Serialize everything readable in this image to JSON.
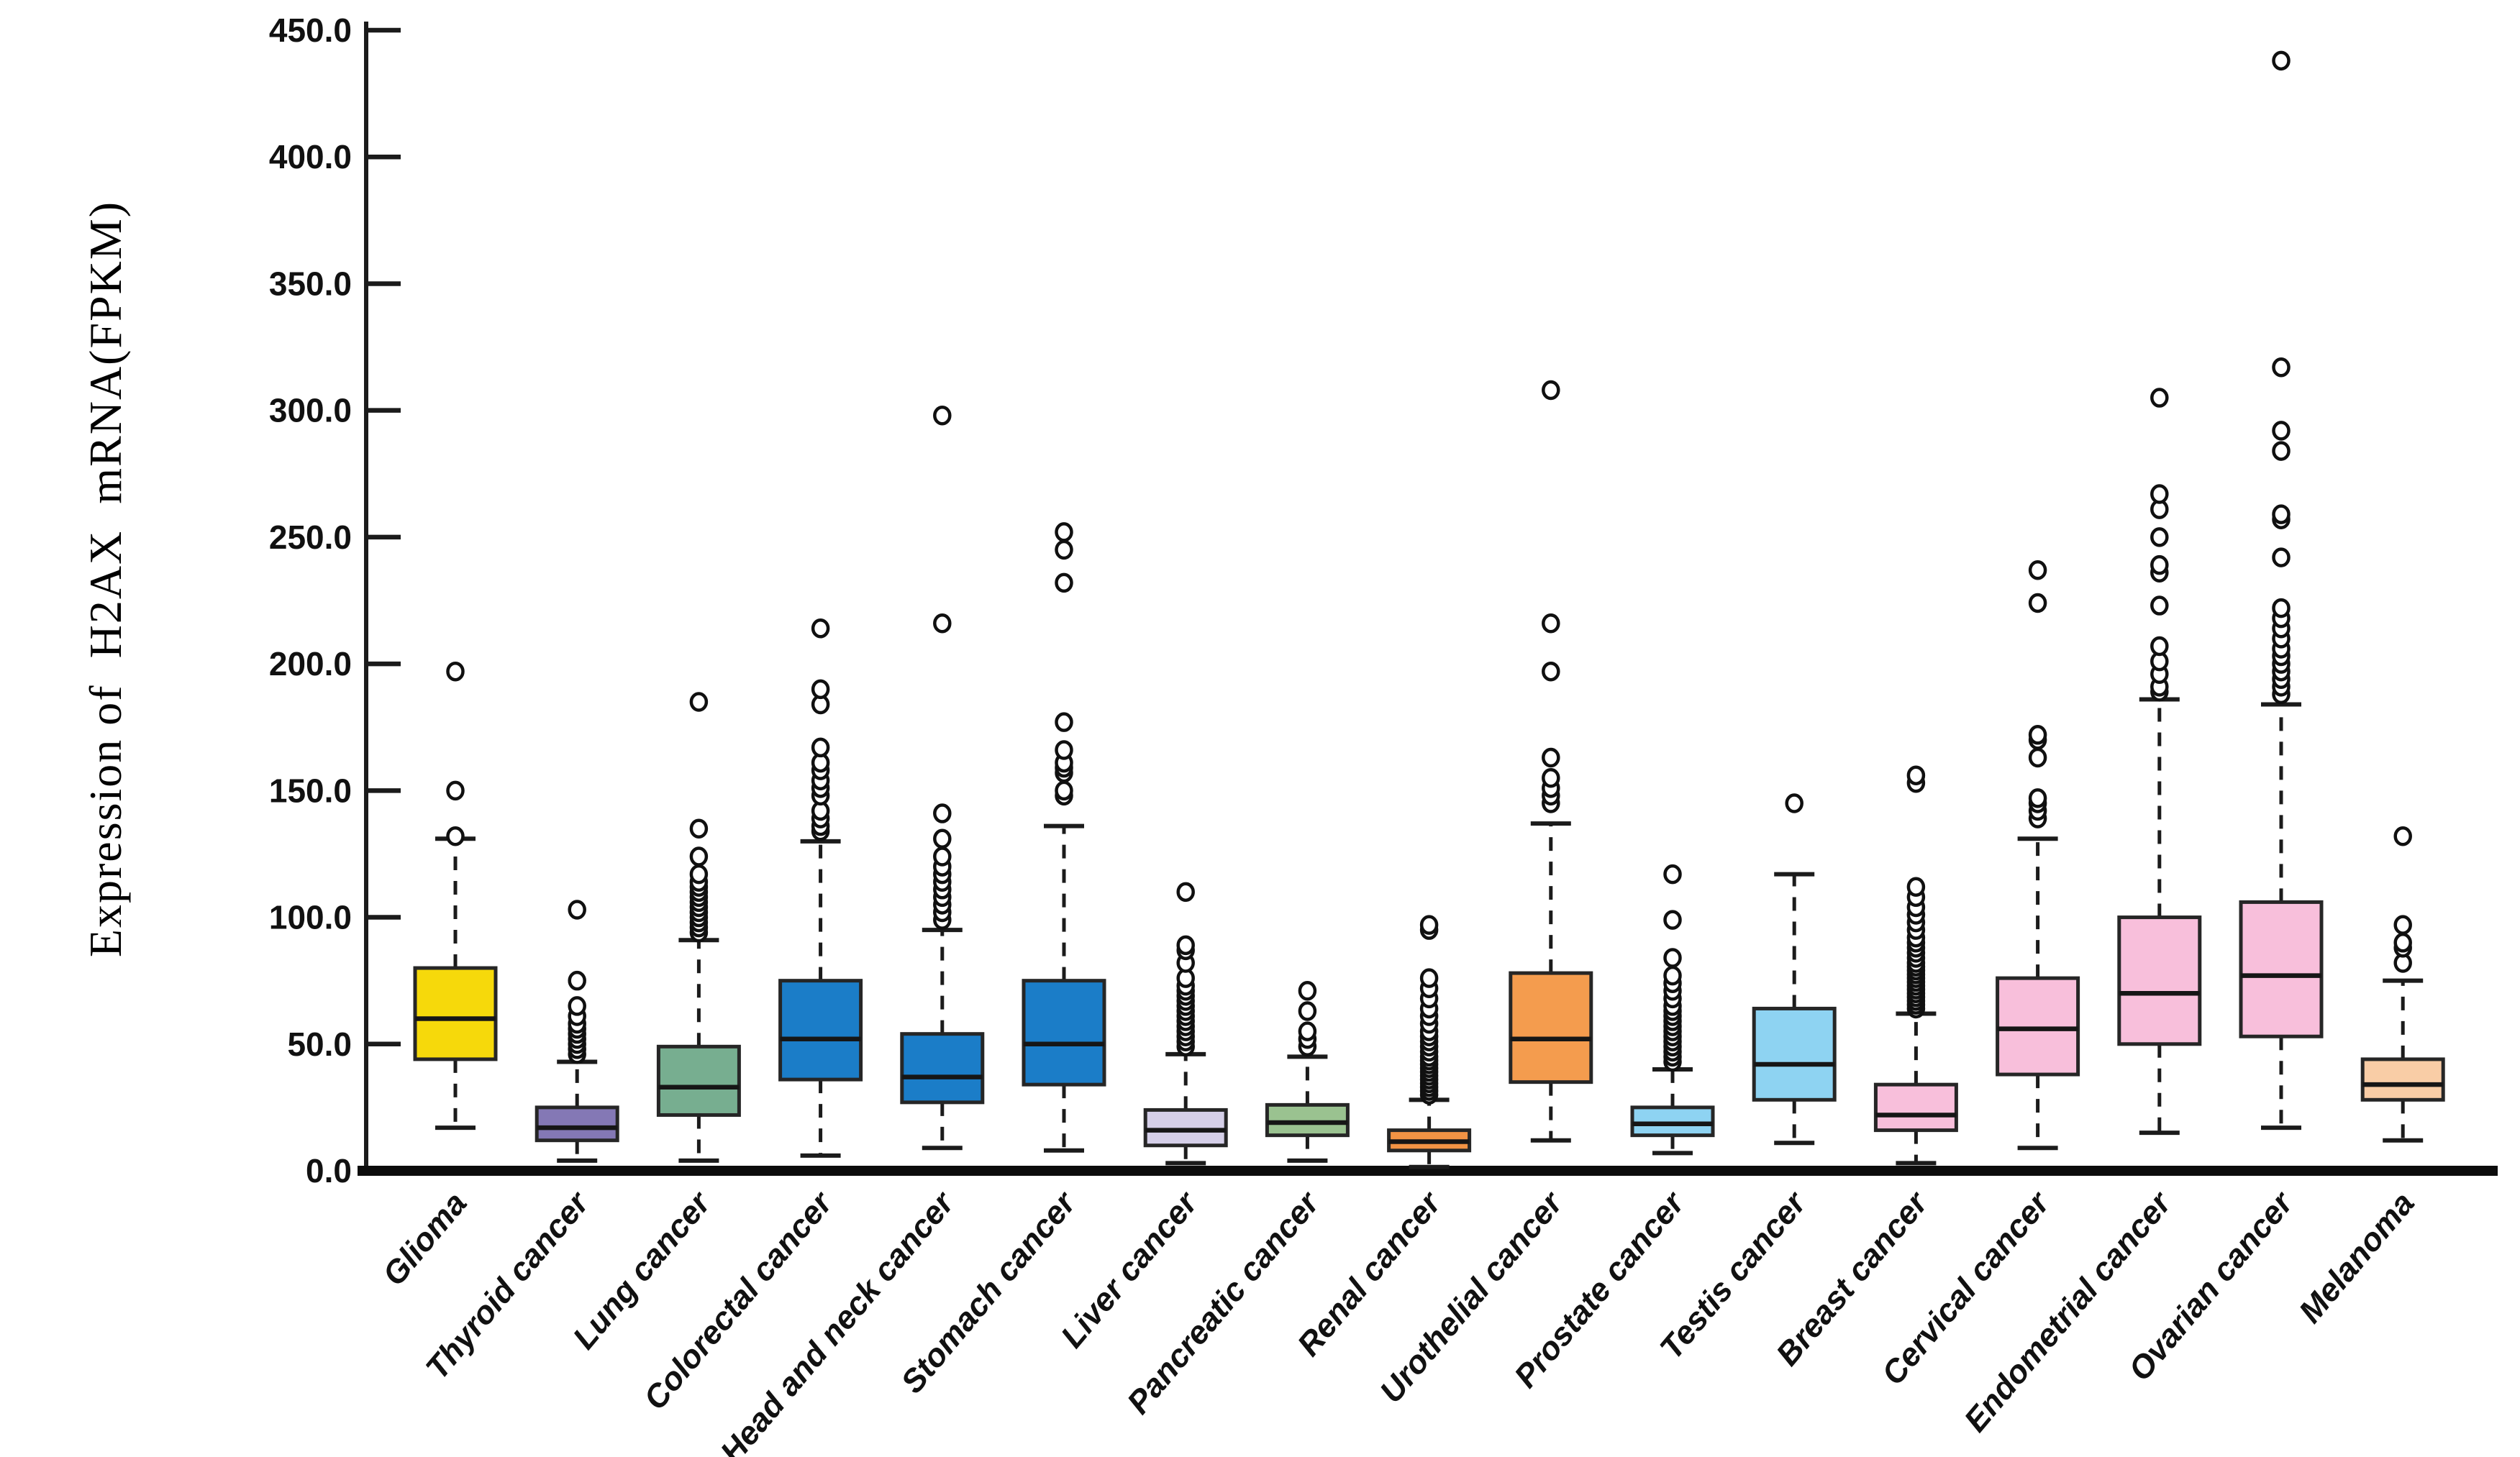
{
  "page": {
    "background_color": "#ffffff"
  },
  "chart_data": {
    "type": "boxplot",
    "title": "",
    "xlabel": "",
    "ylabel": "Expression of  H2AX  mRNA(FPKM)",
    "ylim": [
      0,
      450
    ],
    "yticks": [
      450,
      400,
      350,
      300,
      250,
      200,
      150,
      100,
      50,
      0
    ],
    "ytick_labels": [
      "450.0",
      "400.0",
      "350.0",
      "300.0",
      "250.0",
      "200.0",
      "150.0",
      "100.0",
      "50.0",
      "0.0"
    ],
    "grid": false,
    "legend_position": "none",
    "axis_color": "#1b1b1b",
    "box_border_color": "#262626",
    "categories": [
      "Glioma",
      "Thyroid cancer",
      "Lung cancer",
      "Colorectal cancer",
      "Head and neck cancer",
      "Stomach cancer",
      "Liver cancer",
      "Pancreatic cancer",
      "Renal cancer",
      "Urothelial cancer",
      "Prostate cancer",
      "Testis cancer",
      "Breast cancer",
      "Cervical cancer",
      "Endometrial cancer",
      "Ovarian cancer",
      "Melanoma"
    ],
    "series": [
      {
        "name": "Glioma",
        "color": "#F6D90B",
        "whisker_low": 17,
        "q1": 44,
        "median": 60,
        "q3": 80,
        "whisker_high": 131,
        "outliers": [
          132,
          150,
          197
        ]
      },
      {
        "name": "Thyroid cancer",
        "color": "#8478B5",
        "whisker_low": 4,
        "q1": 12,
        "median": 17,
        "q3": 25,
        "whisker_high": 43,
        "outliers": [
          46,
          48,
          50,
          52,
          54,
          56,
          58,
          61,
          65,
          75,
          103
        ]
      },
      {
        "name": "Lung cancer",
        "color": "#77AE90",
        "whisker_low": 4,
        "q1": 22,
        "median": 33,
        "q3": 49,
        "whisker_high": 91,
        "outliers": [
          94,
          96,
          98,
          100,
          102,
          104,
          106,
          108,
          110,
          112,
          114,
          117,
          124,
          135,
          185
        ]
      },
      {
        "name": "Colorectal cancer",
        "color": "#1B7DC8",
        "whisker_low": 6,
        "q1": 36,
        "median": 52,
        "q3": 75,
        "whisker_high": 130,
        "outliers": [
          134,
          136,
          139,
          142,
          148,
          151,
          154,
          158,
          161,
          167,
          184,
          190,
          214
        ]
      },
      {
        "name": "Head and neck cancer",
        "color": "#1B7DC8",
        "whisker_low": 9,
        "q1": 27,
        "median": 37,
        "q3": 54,
        "whisker_high": 95,
        "outliers": [
          99,
          102,
          105,
          108,
          111,
          114,
          117,
          120,
          124,
          131,
          141,
          216,
          298
        ]
      },
      {
        "name": "Stomach cancer",
        "color": "#1B7DC8",
        "whisker_low": 8,
        "q1": 34,
        "median": 50,
        "q3": 75,
        "whisker_high": 136,
        "outliers": [
          148,
          150,
          157,
          159,
          161,
          166,
          177,
          232,
          245,
          252
        ]
      },
      {
        "name": "Liver cancer",
        "color": "#D5CFE8",
        "whisker_low": 3,
        "q1": 10,
        "median": 16,
        "q3": 24,
        "whisker_high": 46,
        "outliers": [
          49,
          51,
          53,
          55,
          57,
          59,
          61,
          63,
          65,
          67,
          69,
          71,
          73,
          76,
          82,
          87,
          89,
          110
        ]
      },
      {
        "name": "Pancreatic cancer",
        "color": "#9AC290",
        "whisker_low": 4,
        "q1": 14,
        "median": 19,
        "q3": 26,
        "whisker_high": 45,
        "outliers": [
          49,
          52,
          55,
          63,
          71
        ]
      },
      {
        "name": "Renal cancer",
        "color": "#F29344",
        "whisker_low": 1.5,
        "q1": 8,
        "median": 11.5,
        "q3": 16,
        "whisker_high": 28,
        "outliers": [
          30,
          31.5,
          33,
          34.5,
          36,
          37.5,
          39,
          40.5,
          42,
          43.5,
          45,
          47,
          49,
          51,
          53,
          55,
          58,
          61,
          64,
          68,
          72,
          76,
          95,
          97
        ]
      },
      {
        "name": "Urothelial cancer",
        "color": "#F49C4E",
        "whisker_low": 12,
        "q1": 35,
        "median": 52,
        "q3": 78,
        "whisker_high": 137,
        "outliers": [
          145,
          148,
          151,
          155,
          163,
          197,
          216,
          308
        ]
      },
      {
        "name": "Prostate cancer",
        "color": "#8ED3F2",
        "whisker_low": 7,
        "q1": 14,
        "median": 18.5,
        "q3": 25,
        "whisker_high": 40,
        "outliers": [
          43,
          45,
          47,
          49,
          51,
          53,
          55,
          57,
          59,
          61,
          63,
          65,
          68,
          71,
          74,
          77,
          84,
          99,
          117
        ]
      },
      {
        "name": "Testis cancer",
        "color": "#8ED3F2",
        "whisker_low": 11,
        "q1": 28,
        "median": 42,
        "q3": 64,
        "whisker_high": 117,
        "outliers": [
          145
        ]
      },
      {
        "name": "Breast cancer",
        "color": "#F8BFDB",
        "whisker_low": 3,
        "q1": 16,
        "median": 22,
        "q3": 34,
        "whisker_high": 62,
        "outliers": [
          64,
          65.5,
          67,
          68.5,
          70,
          71.5,
          73,
          74.5,
          76,
          77.5,
          79,
          80.5,
          82,
          84,
          86,
          88,
          90,
          92,
          95,
          98,
          101,
          104,
          108,
          112,
          153,
          156
        ]
      },
      {
        "name": "Cervical cancer",
        "color": "#F8BFDB",
        "whisker_low": 9,
        "q1": 38,
        "median": 56,
        "q3": 76,
        "whisker_high": 131,
        "outliers": [
          139,
          142,
          145,
          147,
          163,
          170,
          172,
          224,
          237
        ]
      },
      {
        "name": "Endometrial cancer",
        "color": "#F8BFDB",
        "whisker_low": 15,
        "q1": 50,
        "median": 70,
        "q3": 100,
        "whisker_high": 186,
        "outliers": [
          189,
          191,
          196,
          201,
          207,
          223,
          236,
          239,
          250,
          261,
          267,
          305
        ]
      },
      {
        "name": "Ovarian cancer",
        "color": "#F8BFDB",
        "whisker_low": 17,
        "q1": 53,
        "median": 77,
        "q3": 106,
        "whisker_high": 184,
        "outliers": [
          188,
          191,
          194,
          197,
          200,
          203,
          206,
          210,
          214,
          218,
          222,
          242,
          257,
          259,
          284,
          292,
          317,
          438
        ]
      },
      {
        "name": "Melanoma",
        "color": "#F9CDA6",
        "whisker_low": 12,
        "q1": 28,
        "median": 34,
        "q3": 44,
        "whisker_high": 75,
        "outliers": [
          82,
          88,
          90,
          97,
          132
        ]
      }
    ]
  }
}
